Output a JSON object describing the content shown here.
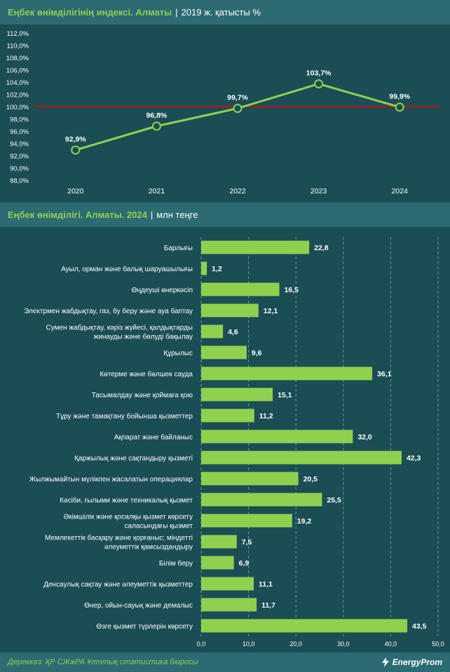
{
  "header1": {
    "title": "Еңбек өнімділігінің индексі. Алматы",
    "separator": "|",
    "subtitle": "2019 ж. қатысты %"
  },
  "header2": {
    "title": "Еңбек өнімділігі. Алматы. 2024",
    "separator": "|",
    "subtitle": "млн теңге"
  },
  "footer": {
    "source": "Дереккөз: ҚР СЖжРА Ұлттық статистика бюросы",
    "logo": "EnergyProm"
  },
  "colors": {
    "background": "#1b4d55",
    "header_band": "#2d6b73",
    "accent_green": "#8fd14f",
    "reference_line": "#c0141a"
  },
  "chart_data": [
    {
      "type": "line",
      "x": [
        "2020",
        "2021",
        "2022",
        "2023",
        "2024"
      ],
      "values": [
        92.9,
        96.8,
        99.7,
        103.7,
        99.9
      ],
      "data_labels": [
        "92,9%",
        "96,8%",
        "99,7%",
        "103,7%",
        "99,9%"
      ],
      "ylim": [
        88,
        112
      ],
      "yticks": [
        "88,0%",
        "90,0%",
        "92,0%",
        "94,0%",
        "96,0%",
        "98,0%",
        "100,0%",
        "102,0%",
        "104,0%",
        "106,0%",
        "108,0%",
        "110,0%",
        "112,0%"
      ],
      "reference_line": 100,
      "grid": false
    },
    {
      "type": "bar",
      "orientation": "horizontal",
      "categories": [
        [
          "Барлығы"
        ],
        [
          "Ауыл, орман және балық шаруашылығы"
        ],
        [
          "Өңдеуші өнеркәсіп"
        ],
        [
          "Электрмен жабдықтау, газ, бу беру және ауа баптау"
        ],
        [
          "Сумен жабдықтау, кәріз жүйесі, қалдықтарды",
          "жинауды және бөлуді бақылау"
        ],
        [
          "Құрылыс"
        ],
        [
          "Көтерме және бөлшек сауда"
        ],
        [
          "Тасымалдау және қоймаға қою"
        ],
        [
          "Тұру және тамақтану бойынша қызметтер"
        ],
        [
          "Ақпарат және байланыс"
        ],
        [
          "Қаржылық және сақтандыру қызметі"
        ],
        [
          "Жылжымайтын мүлікпен жасалатын операциялар"
        ],
        [
          "Кәсіби, ғылыми және техникалық қызмет"
        ],
        [
          "Әкімшілік және қосалқы қызмет көрсету",
          "саласындағы қызмет"
        ],
        [
          "Мемлекеттік басқару және қорғаныс; міндетті",
          "әлеуметтік қамсыздандыру"
        ],
        [
          "Білім беру"
        ],
        [
          "Денсаулық сақтау және әлеуметтік қызметтер"
        ],
        [
          "Өнер, ойын-сауық және демалыс"
        ],
        [
          "Өзге қызмет түрлерін көрсету"
        ]
      ],
      "values": [
        22.8,
        1.2,
        16.5,
        12.1,
        4.6,
        9.6,
        36.1,
        15.1,
        11.2,
        32.0,
        42.3,
        20.5,
        25.5,
        19.2,
        7.5,
        6.9,
        11.1,
        11.7,
        43.5
      ],
      "data_labels": [
        "22,8",
        "1,2",
        "16,5",
        "12,1",
        "4,6",
        "9,6",
        "36,1",
        "15,1",
        "11,2",
        "32,0",
        "42,3",
        "20,5",
        "25,5",
        "19,2",
        "7,5",
        "6,9",
        "11,1",
        "11,7",
        "43,5"
      ],
      "xlim": [
        0,
        50
      ],
      "xticks": [
        "0,0",
        "10,0",
        "20,0",
        "30,0",
        "40,0",
        "50,0"
      ],
      "grid": true
    }
  ]
}
